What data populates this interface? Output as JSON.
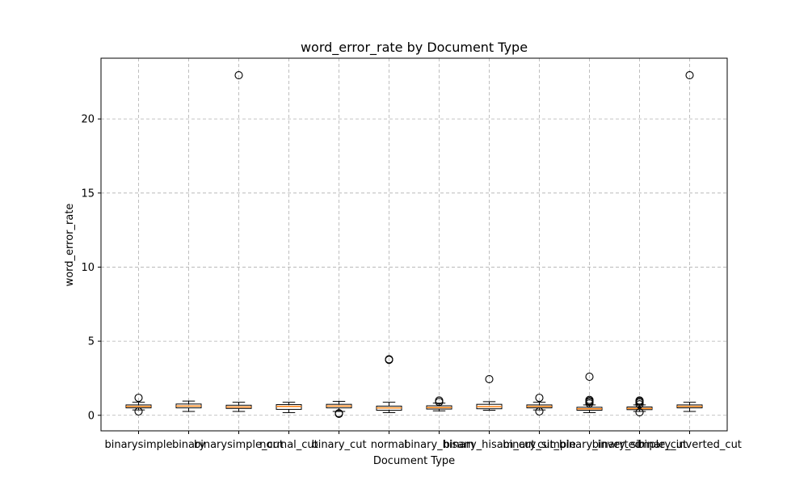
{
  "chart_data": {
    "type": "boxplot",
    "title": "word_error_rate by Document Type",
    "xlabel": "Document Type",
    "ylabel": "word_error_rate",
    "ylim": [
      -1.05,
      24.1
    ],
    "yticks": [
      0,
      5,
      10,
      15,
      20
    ],
    "grid": true,
    "legend": "none",
    "colors": {
      "median": "#ff7f0e",
      "box": "#000000",
      "grid": "#b0b0b0",
      "flier": "#000000"
    },
    "categories": [
      "binarysimple",
      "binary",
      "binarysimple_cut",
      "normal_cut",
      "binary_cut",
      "normal",
      "binary_hisam",
      "binary_hisam_cut",
      "binary_simple",
      "cut_binary_inverted",
      "binary_simple_cut",
      "binary_inverted_cut"
    ],
    "boxes": [
      {
        "whisker_low": 0.36,
        "q1": 0.5,
        "median": 0.6,
        "q3": 0.7,
        "whisker_high": 0.88,
        "fliers": [
          1.18,
          0.26
        ]
      },
      {
        "whisker_low": 0.26,
        "q1": 0.5,
        "median": 0.62,
        "q3": 0.76,
        "whisker_high": 0.96,
        "fliers": []
      },
      {
        "whisker_low": 0.26,
        "q1": 0.46,
        "median": 0.56,
        "q3": 0.68,
        "whisker_high": 0.88,
        "fliers": [
          22.95
        ]
      },
      {
        "whisker_low": 0.18,
        "q1": 0.4,
        "median": 0.6,
        "q3": 0.72,
        "whisker_high": 0.88,
        "fliers": []
      },
      {
        "whisker_low": 0.26,
        "q1": 0.5,
        "median": 0.62,
        "q3": 0.74,
        "whisker_high": 0.94,
        "fliers": [
          0.1,
          0.14
        ]
      },
      {
        "whisker_low": 0.18,
        "q1": 0.34,
        "median": 0.5,
        "q3": 0.62,
        "whisker_high": 0.88,
        "fliers": [
          3.74,
          3.78
        ]
      },
      {
        "whisker_low": 0.3,
        "q1": 0.42,
        "median": 0.52,
        "q3": 0.64,
        "whisker_high": 0.82,
        "fliers": [
          0.9,
          1.0
        ]
      },
      {
        "whisker_low": 0.34,
        "q1": 0.44,
        "median": 0.58,
        "q3": 0.74,
        "whisker_high": 0.92,
        "fliers": [
          2.44
        ]
      },
      {
        "whisker_low": 0.36,
        "q1": 0.5,
        "median": 0.6,
        "q3": 0.7,
        "whisker_high": 0.88,
        "fliers": [
          1.18,
          0.26
        ]
      },
      {
        "whisker_low": 0.18,
        "q1": 0.34,
        "median": 0.44,
        "q3": 0.54,
        "whisker_high": 0.7,
        "fliers": [
          2.6,
          0.8,
          0.9,
          0.96,
          1.04
        ]
      },
      {
        "whisker_low": 0.26,
        "q1": 0.38,
        "median": 0.46,
        "q3": 0.56,
        "whisker_high": 0.7,
        "fliers": [
          0.2,
          0.74,
          0.86,
          0.94,
          1.0
        ]
      },
      {
        "whisker_low": 0.26,
        "q1": 0.5,
        "median": 0.6,
        "q3": 0.7,
        "whisker_high": 0.88,
        "fliers": [
          22.95
        ]
      }
    ]
  }
}
